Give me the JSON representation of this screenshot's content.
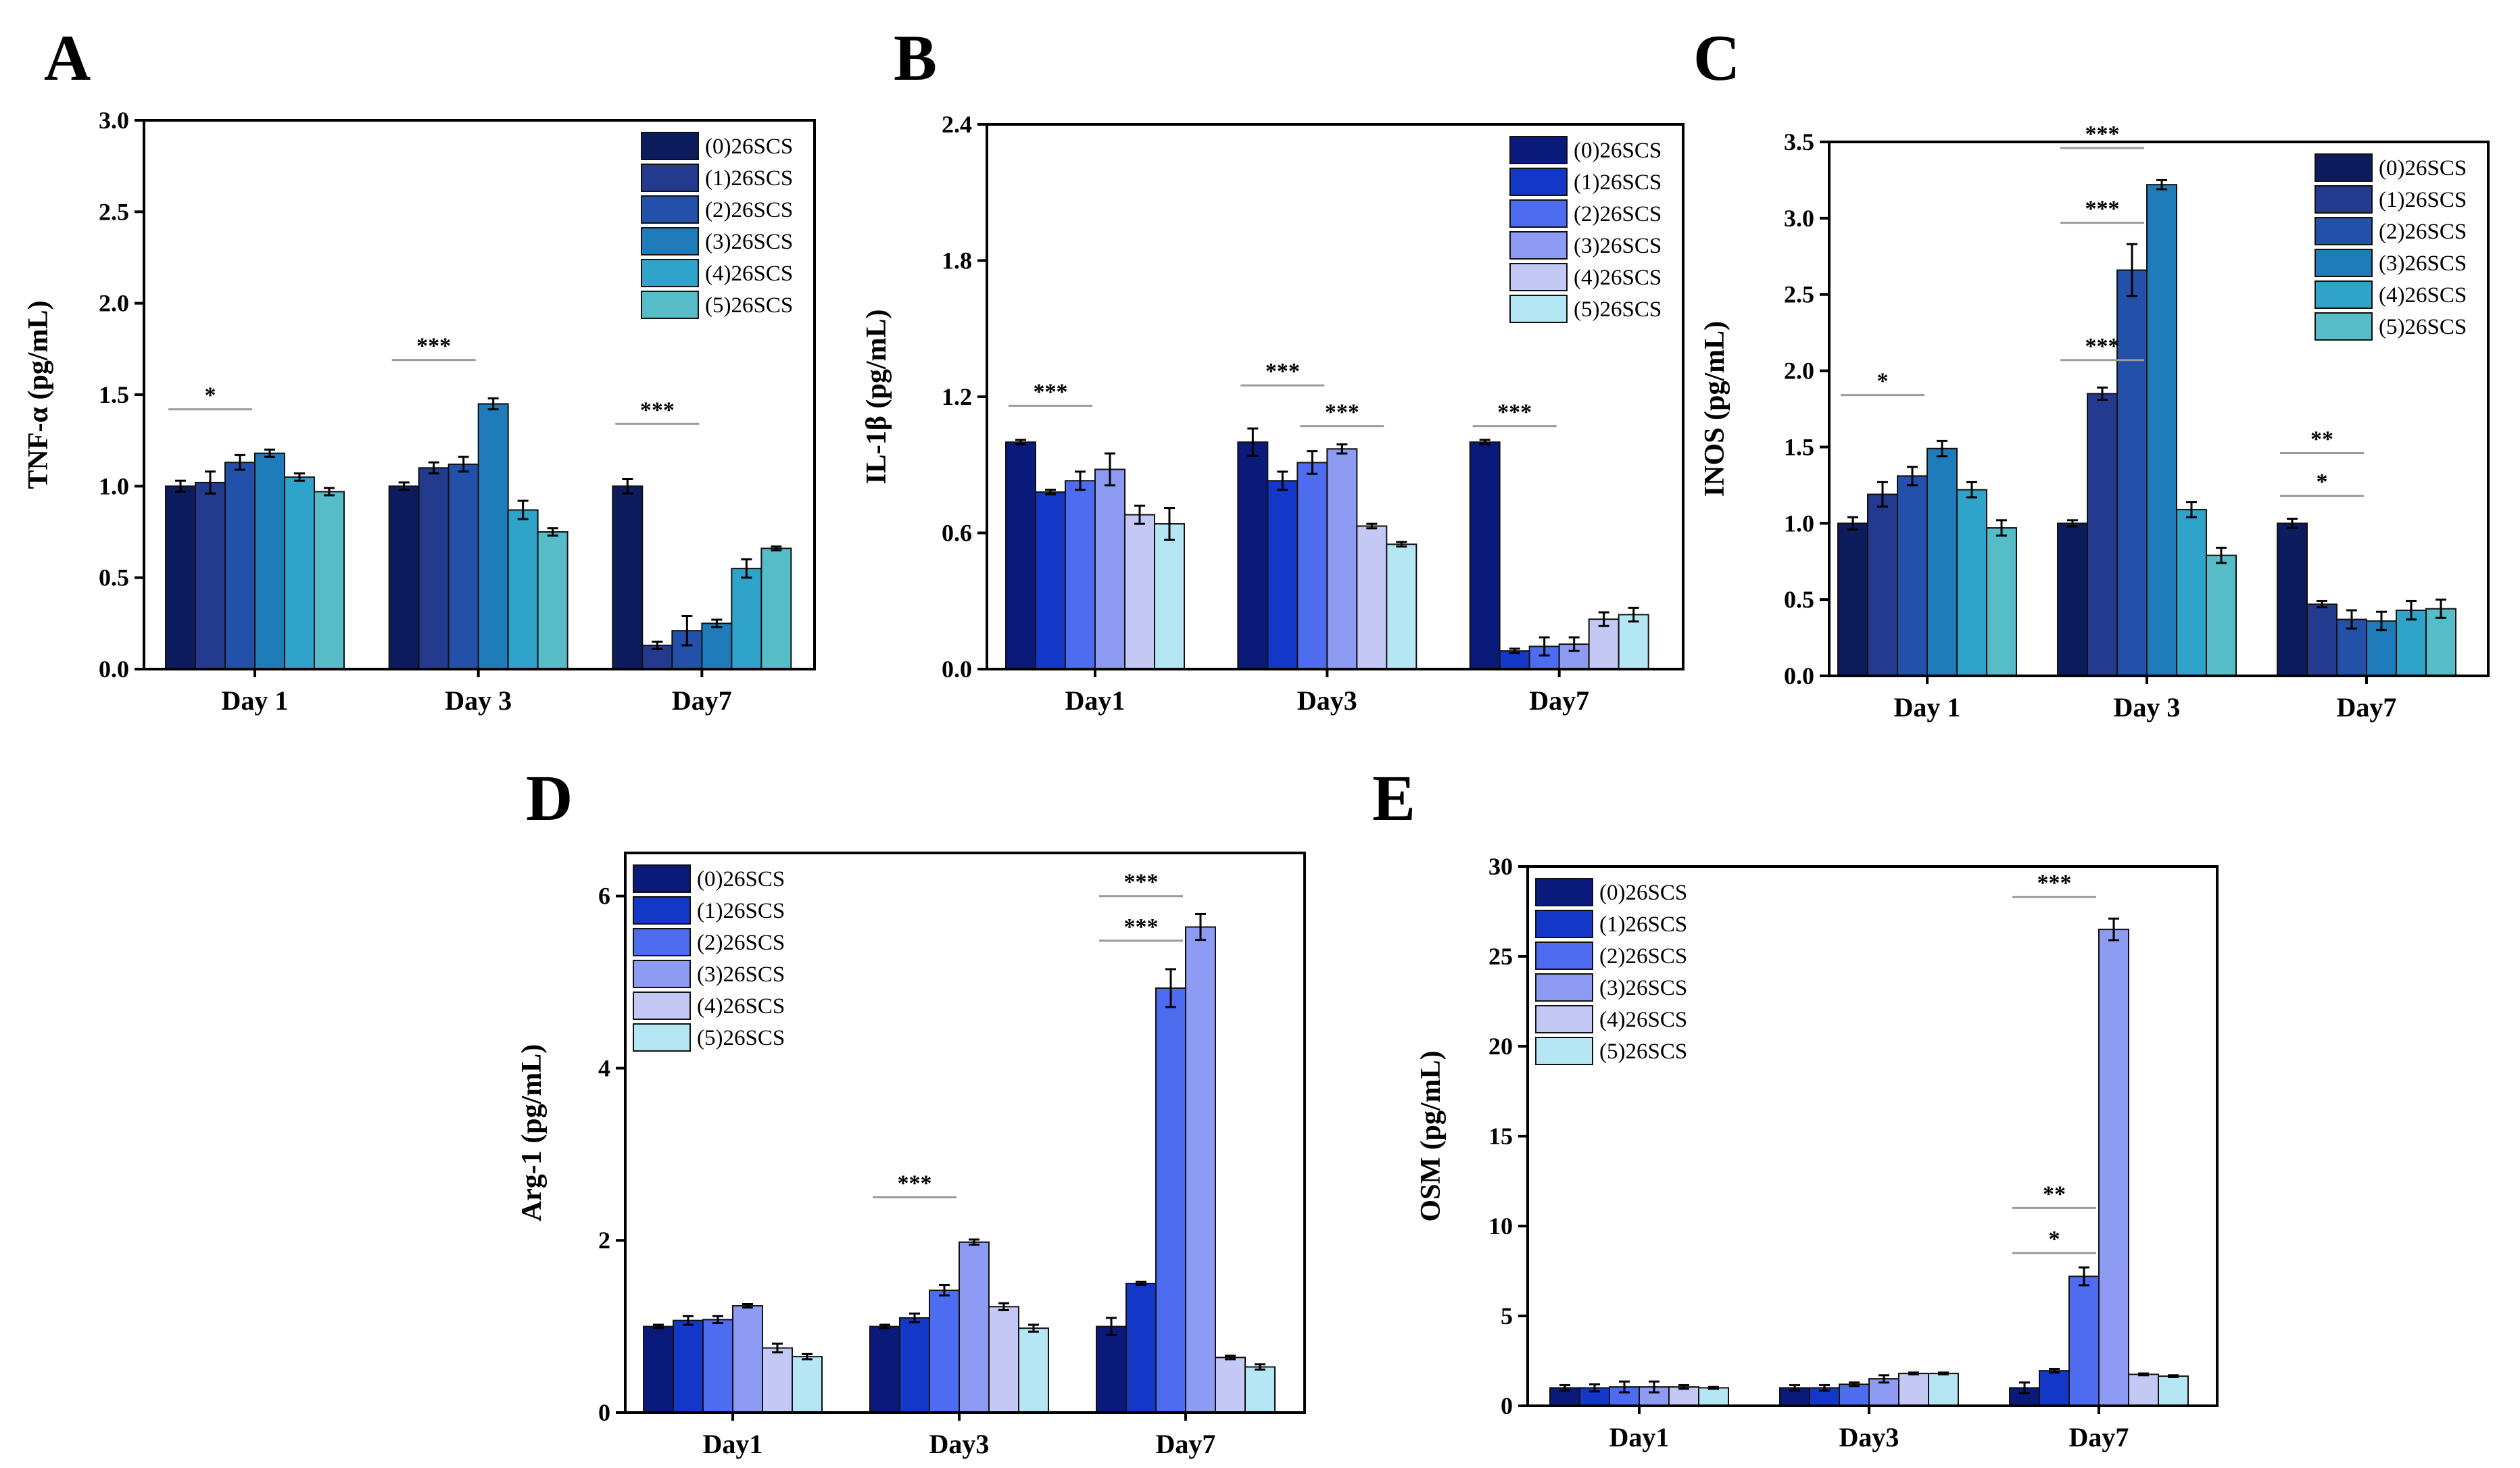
{
  "chart_data": [
    {
      "id": "A",
      "type": "bar",
      "letter": "A",
      "ylabel": "TNF-α (pg/mL)",
      "categories": [
        "Day 1",
        "Day 3",
        "Day7"
      ],
      "ylim": [
        0,
        3.0
      ],
      "yticks": [
        "0.0",
        "0.5",
        "1.0",
        "1.5",
        "2.0",
        "2.5",
        "3.0"
      ],
      "legend_position": "top-right",
      "series": [
        {
          "name": "(0)26SCS",
          "color": "#0d1c5c",
          "values": [
            1.0,
            1.0,
            1.0
          ],
          "errors": [
            0.03,
            0.02,
            0.04
          ]
        },
        {
          "name": "(1)26SCS",
          "color": "#233a8e",
          "values": [
            1.02,
            1.1,
            0.13
          ],
          "errors": [
            0.06,
            0.03,
            0.02
          ]
        },
        {
          "name": "(2)26SCS",
          "color": "#2350a8",
          "values": [
            1.13,
            1.12,
            0.21
          ],
          "errors": [
            0.04,
            0.04,
            0.08
          ]
        },
        {
          "name": "(3)26SCS",
          "color": "#1f7cbb",
          "values": [
            1.18,
            1.45,
            0.25
          ],
          "errors": [
            0.02,
            0.03,
            0.02
          ]
        },
        {
          "name": "(4)26SCS",
          "color": "#2fa3c9",
          "values": [
            1.05,
            0.87,
            0.55
          ],
          "errors": [
            0.02,
            0.05,
            0.05
          ]
        },
        {
          "name": "(5)26SCS",
          "color": "#56bcc8",
          "values": [
            0.97,
            0.75,
            0.66
          ],
          "errors": [
            0.02,
            0.02,
            0.01
          ]
        }
      ],
      "sig": [
        {
          "label": "*",
          "cat": 0,
          "y": 1.42
        },
        {
          "label": "***",
          "cat": 1,
          "y": 1.69
        },
        {
          "label": "***",
          "cat": 2,
          "y": 1.34
        }
      ]
    },
    {
      "id": "B",
      "type": "bar",
      "letter": "B",
      "ylabel": "IL-1β (pg/mL)",
      "categories": [
        "Day1",
        "Day3",
        "Day7"
      ],
      "ylim": [
        0,
        2.4
      ],
      "yticks": [
        "0.0",
        "0.6",
        "1.2",
        "1.8",
        "2.4"
      ],
      "legend_position": "top-right",
      "series": [
        {
          "name": "(0)26SCS",
          "color": "#0a1a7a",
          "values": [
            1.0,
            1.0,
            1.0
          ],
          "errors": [
            0.01,
            0.06,
            0.01
          ]
        },
        {
          "name": "(1)26SCS",
          "color": "#1338c8",
          "values": [
            0.78,
            0.83,
            0.08
          ],
          "errors": [
            0.01,
            0.04,
            0.01
          ]
        },
        {
          "name": "(2)26SCS",
          "color": "#4e6cf0",
          "values": [
            0.83,
            0.91,
            0.1
          ],
          "errors": [
            0.04,
            0.05,
            0.04
          ]
        },
        {
          "name": "(3)26SCS",
          "color": "#8d9cf2",
          "values": [
            0.88,
            0.97,
            0.11
          ],
          "errors": [
            0.07,
            0.02,
            0.03
          ]
        },
        {
          "name": "(4)26SCS",
          "color": "#c3c8f5",
          "values": [
            0.68,
            0.63,
            0.22
          ],
          "errors": [
            0.04,
            0.01,
            0.03
          ]
        },
        {
          "name": "(5)26SCS",
          "color": "#b5e6f3",
          "values": [
            0.64,
            0.55,
            0.24
          ],
          "errors": [
            0.07,
            0.01,
            0.03
          ]
        }
      ],
      "sig": [
        {
          "label": "***",
          "cat": 0,
          "y": 1.16
        },
        {
          "label": "***",
          "cat": 1,
          "y": 1.25
        },
        {
          "label": "***",
          "cat": 1,
          "y": 1.07,
          "start": 2
        },
        {
          "label": "***",
          "cat": 2,
          "y": 1.07
        }
      ]
    },
    {
      "id": "C",
      "type": "bar",
      "letter": "C",
      "ylabel": "INOS (pg/mL)",
      "categories": [
        "Day 1",
        "Day 3",
        "Day7"
      ],
      "ylim": [
        0,
        3.5
      ],
      "yticks": [
        "0.0",
        "0.5",
        "1.0",
        "1.5",
        "2.0",
        "2.5",
        "3.0",
        "3.5"
      ],
      "legend_position": "top-right",
      "series": [
        {
          "name": "(0)26SCS",
          "color": "#0d1c5c",
          "values": [
            1.0,
            1.0,
            1.0
          ],
          "errors": [
            0.04,
            0.02,
            0.03
          ]
        },
        {
          "name": "(1)26SCS",
          "color": "#233a8e",
          "values": [
            1.19,
            1.85,
            0.47
          ],
          "errors": [
            0.08,
            0.04,
            0.02
          ]
        },
        {
          "name": "(2)26SCS",
          "color": "#2350a8",
          "values": [
            1.31,
            2.66,
            0.37
          ],
          "errors": [
            0.06,
            0.17,
            0.06
          ]
        },
        {
          "name": "(3)26SCS",
          "color": "#1f7cbb",
          "values": [
            1.49,
            3.22,
            0.36
          ],
          "errors": [
            0.05,
            0.03,
            0.06
          ]
        },
        {
          "name": "(4)26SCS",
          "color": "#2fa3c9",
          "values": [
            1.22,
            1.09,
            0.43
          ],
          "errors": [
            0.05,
            0.05,
            0.06
          ]
        },
        {
          "name": "(5)26SCS",
          "color": "#56bcc8",
          "values": [
            0.97,
            0.79,
            0.44
          ],
          "errors": [
            0.05,
            0.05,
            0.06
          ]
        }
      ],
      "sig": [
        {
          "label": "*",
          "cat": 0,
          "y": 1.84
        },
        {
          "label": "***",
          "cat": 1,
          "y": 3.46
        },
        {
          "label": "***",
          "cat": 1,
          "y": 2.97
        },
        {
          "label": "***",
          "cat": 1,
          "y": 2.07
        },
        {
          "label": "**",
          "cat": 2,
          "y": 1.46
        },
        {
          "label": "*",
          "cat": 2,
          "y": 1.18
        }
      ]
    },
    {
      "id": "D",
      "type": "bar",
      "letter": "D",
      "ylabel": "Arg-1 (pg/mL)",
      "categories": [
        "Day1",
        "Day3",
        "Day7"
      ],
      "ylim": [
        0,
        6.5
      ],
      "yticks": [
        "0",
        "2",
        "4",
        "6"
      ],
      "legend_position": "top-left",
      "series": [
        {
          "name": "(0)26SCS",
          "color": "#0a1a7a",
          "values": [
            1.0,
            1.0,
            1.0
          ],
          "errors": [
            0.02,
            0.02,
            0.1
          ]
        },
        {
          "name": "(1)26SCS",
          "color": "#1338c8",
          "values": [
            1.07,
            1.1,
            1.5
          ],
          "errors": [
            0.05,
            0.05,
            0.02
          ]
        },
        {
          "name": "(2)26SCS",
          "color": "#4e6cf0",
          "values": [
            1.08,
            1.42,
            4.93
          ],
          "errors": [
            0.04,
            0.06,
            0.22
          ]
        },
        {
          "name": "(3)26SCS",
          "color": "#8d9cf2",
          "values": [
            1.24,
            1.98,
            5.64
          ],
          "errors": [
            0.02,
            0.03,
            0.15
          ]
        },
        {
          "name": "(4)26SCS",
          "color": "#c3c8f5",
          "values": [
            0.75,
            1.23,
            0.64
          ],
          "errors": [
            0.05,
            0.04,
            0.02
          ]
        },
        {
          "name": "(5)26SCS",
          "color": "#b5e6f3",
          "values": [
            0.65,
            0.98,
            0.53
          ],
          "errors": [
            0.03,
            0.04,
            0.03
          ]
        }
      ],
      "sig": [
        {
          "label": "***",
          "cat": 1,
          "y": 2.5
        },
        {
          "label": "***",
          "cat": 2,
          "y": 6.0
        },
        {
          "label": "***",
          "cat": 2,
          "y": 5.48
        }
      ]
    },
    {
      "id": "E",
      "type": "bar",
      "letter": "E",
      "ylabel": "OSM (pg/mL)",
      "categories": [
        "Day1",
        "Day3",
        "Day7"
      ],
      "ylim": [
        0,
        30
      ],
      "yticks": [
        "0",
        "5",
        "10",
        "15",
        "20",
        "25",
        "30"
      ],
      "legend_position": "top-left",
      "series": [
        {
          "name": "(0)26SCS",
          "color": "#0a1a7a",
          "values": [
            1.0,
            1.0,
            1.0
          ],
          "errors": [
            0.15,
            0.15,
            0.3
          ]
        },
        {
          "name": "(1)26SCS",
          "color": "#1338c8",
          "values": [
            1.0,
            1.0,
            1.95
          ],
          "errors": [
            0.2,
            0.15,
            0.1
          ]
        },
        {
          "name": "(2)26SCS",
          "color": "#4e6cf0",
          "values": [
            1.05,
            1.2,
            7.2
          ],
          "errors": [
            0.3,
            0.1,
            0.5
          ]
        },
        {
          "name": "(3)26SCS",
          "color": "#8d9cf2",
          "values": [
            1.05,
            1.5,
            26.5
          ],
          "errors": [
            0.3,
            0.2,
            0.6
          ]
        },
        {
          "name": "(4)26SCS",
          "color": "#c3c8f5",
          "values": [
            1.05,
            1.8,
            1.75
          ],
          "errors": [
            0.1,
            0.05,
            0.05
          ]
        },
        {
          "name": "(5)26SCS",
          "color": "#b5e6f3",
          "values": [
            1.0,
            1.8,
            1.65
          ],
          "errors": [
            0.05,
            0.05,
            0.05
          ]
        }
      ],
      "sig": [
        {
          "label": "***",
          "cat": 2,
          "y": 28.3
        },
        {
          "label": "**",
          "cat": 2,
          "y": 11.0
        },
        {
          "label": "*",
          "cat": 2,
          "y": 8.5
        }
      ]
    }
  ]
}
